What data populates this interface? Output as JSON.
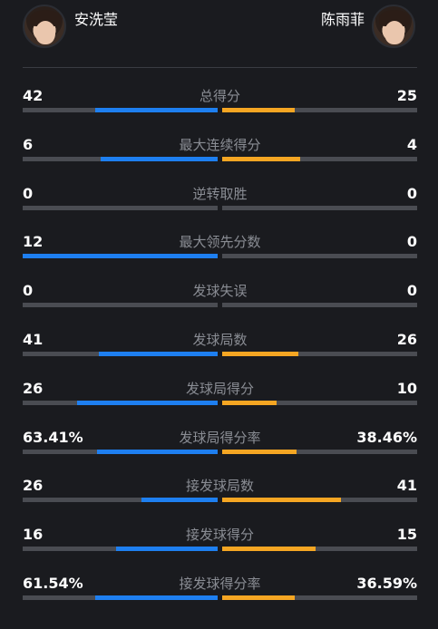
{
  "players": {
    "left": {
      "name": "安洗莹"
    },
    "right": {
      "name": "陈雨菲"
    }
  },
  "colors": {
    "left_bar": "#1e7ff0",
    "right_bar": "#f5a623",
    "track": "#4a4c52",
    "background": "#1a1b1f"
  },
  "stats": [
    {
      "label": "总得分",
      "left": "42",
      "right": "25",
      "left_share": 0.63,
      "right_share": 0.37
    },
    {
      "label": "最大连续得分",
      "left": "6",
      "right": "4",
      "left_share": 0.6,
      "right_share": 0.4
    },
    {
      "label": "逆转取胜",
      "left": "0",
      "right": "0",
      "left_share": 0,
      "right_share": 0
    },
    {
      "label": "最大领先分数",
      "left": "12",
      "right": "0",
      "left_share": 1.0,
      "right_share": 0
    },
    {
      "label": "发球失误",
      "left": "0",
      "right": "0",
      "left_share": 0,
      "right_share": 0
    },
    {
      "label": "发球局数",
      "left": "41",
      "right": "26",
      "left_share": 0.61,
      "right_share": 0.39
    },
    {
      "label": "发球局得分",
      "left": "26",
      "right": "10",
      "left_share": 0.72,
      "right_share": 0.28
    },
    {
      "label": "发球局得分率",
      "left": "63.41%",
      "right": "38.46%",
      "left_share": 0.62,
      "right_share": 0.38
    },
    {
      "label": "接发球局数",
      "left": "26",
      "right": "41",
      "left_share": 0.39,
      "right_share": 0.61
    },
    {
      "label": "接发球得分",
      "left": "16",
      "right": "15",
      "left_share": 0.52,
      "right_share": 0.48
    },
    {
      "label": "接发球得分率",
      "left": "61.54%",
      "right": "36.59%",
      "left_share": 0.63,
      "right_share": 0.37
    }
  ]
}
